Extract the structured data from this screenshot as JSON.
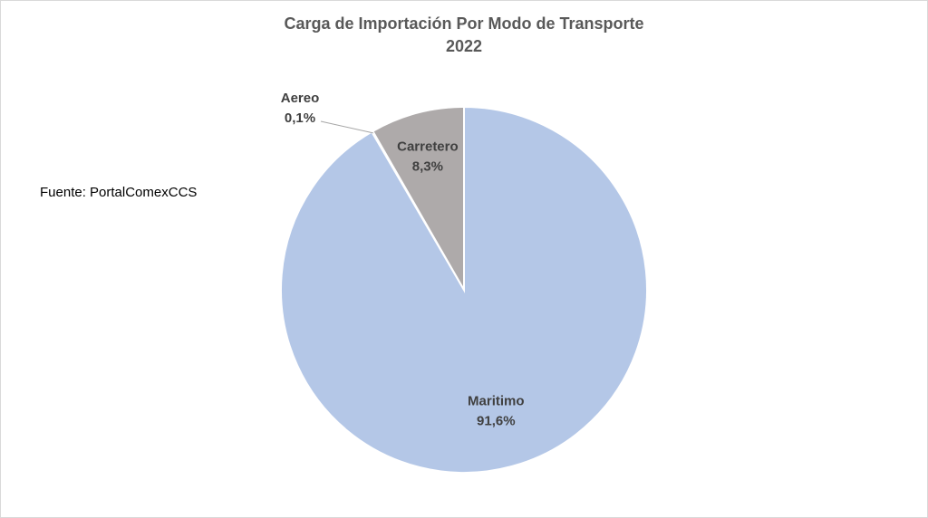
{
  "chart_data": {
    "type": "pie",
    "title": "Carga de Importación Por Modo de Transporte",
    "subtitle": "2022",
    "slices": [
      {
        "label": "Maritimo",
        "value": 91.6,
        "value_label": "91,6%",
        "color": "#b4c7e7"
      },
      {
        "label": "Aereo",
        "value": 0.1,
        "value_label": "0,1%",
        "color": "#a5a5a5"
      },
      {
        "label": "Carretero",
        "value": 8.3,
        "value_label": "8,3%",
        "color": "#aeaaaa"
      }
    ]
  },
  "source_note": "Fuente: PortalComexCCS"
}
